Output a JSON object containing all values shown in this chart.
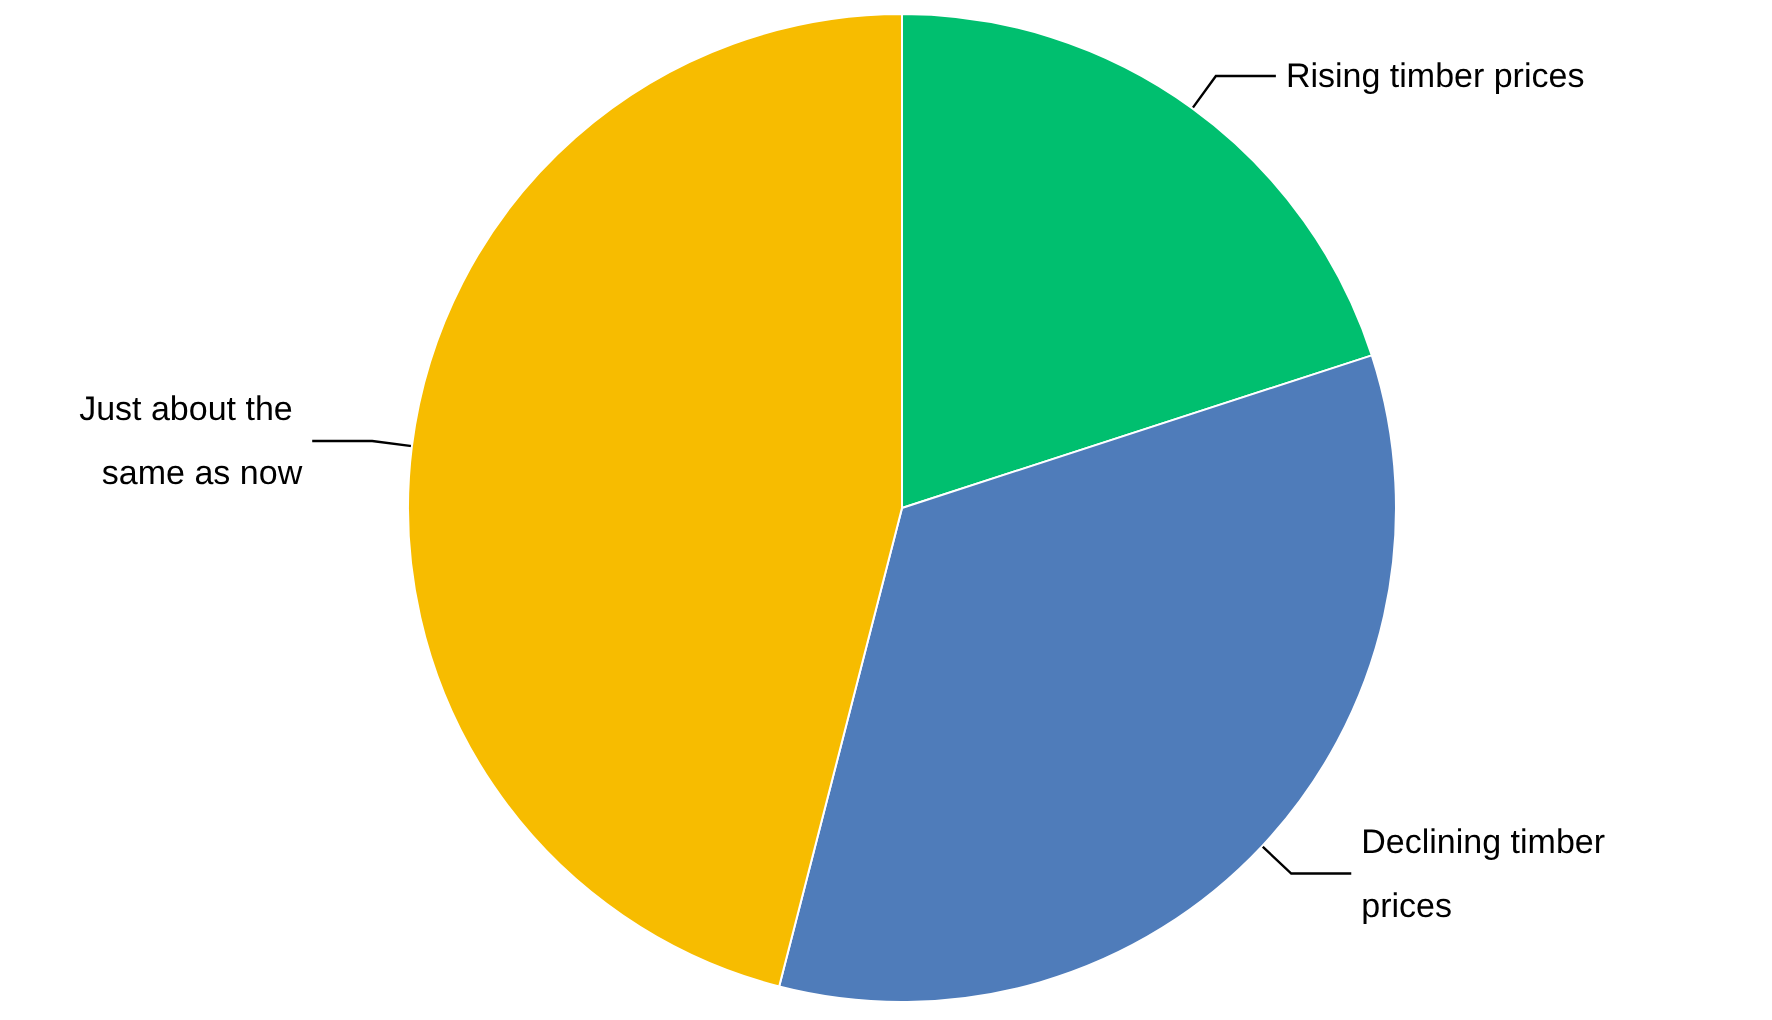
{
  "chart_data": {
    "type": "pie",
    "categories": [
      "Rising timber prices",
      "Declining timber prices",
      "Just about the same as now"
    ],
    "values": [
      20,
      34,
      46
    ],
    "colors": [
      "#00bf6f",
      "#4f7cba",
      "#f7bc00"
    ],
    "legend": false
  }
}
